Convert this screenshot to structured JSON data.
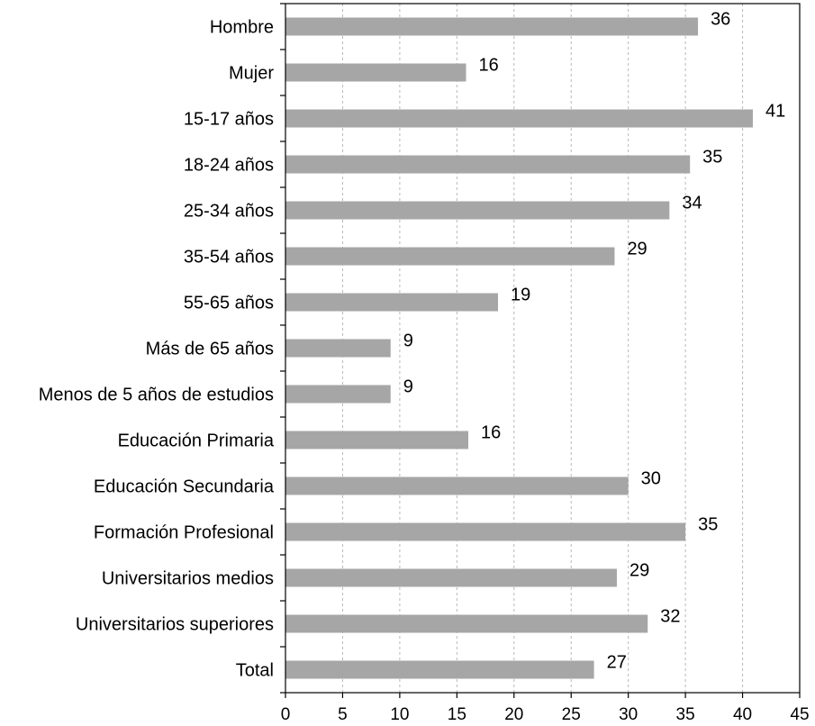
{
  "chart_data": {
    "type": "bar",
    "orientation": "horizontal",
    "categories": [
      "Hombre",
      "Mujer",
      "15-17 años",
      "18-24 años",
      "25-34 años",
      "35-54 años",
      "55-65 años",
      "Más de 65 años",
      "Menos de 5 años de estudios",
      "Educación Primaria",
      "Educación Secundaria",
      "Formación Profesional",
      "Universitarios medios",
      "Universitarios superiores",
      "Total"
    ],
    "values": [
      36.1,
      15.8,
      40.9,
      35.4,
      33.6,
      28.8,
      18.6,
      9.2,
      9.2,
      16.0,
      30.0,
      35.0,
      29.0,
      31.7,
      27.0
    ],
    "data_labels": [
      "36",
      "16",
      "41",
      "35",
      "34",
      "29",
      "19",
      "9",
      "9",
      "16",
      "30",
      "35",
      "29",
      "32",
      "27"
    ],
    "xlim": [
      0,
      45
    ],
    "xticks": [
      "0",
      "5",
      "10",
      "15",
      "20",
      "25",
      "30",
      "35",
      "40",
      "45"
    ],
    "grid": true,
    "bar_color": "#a6a6a6",
    "grid_color": "#b8b8b8"
  }
}
